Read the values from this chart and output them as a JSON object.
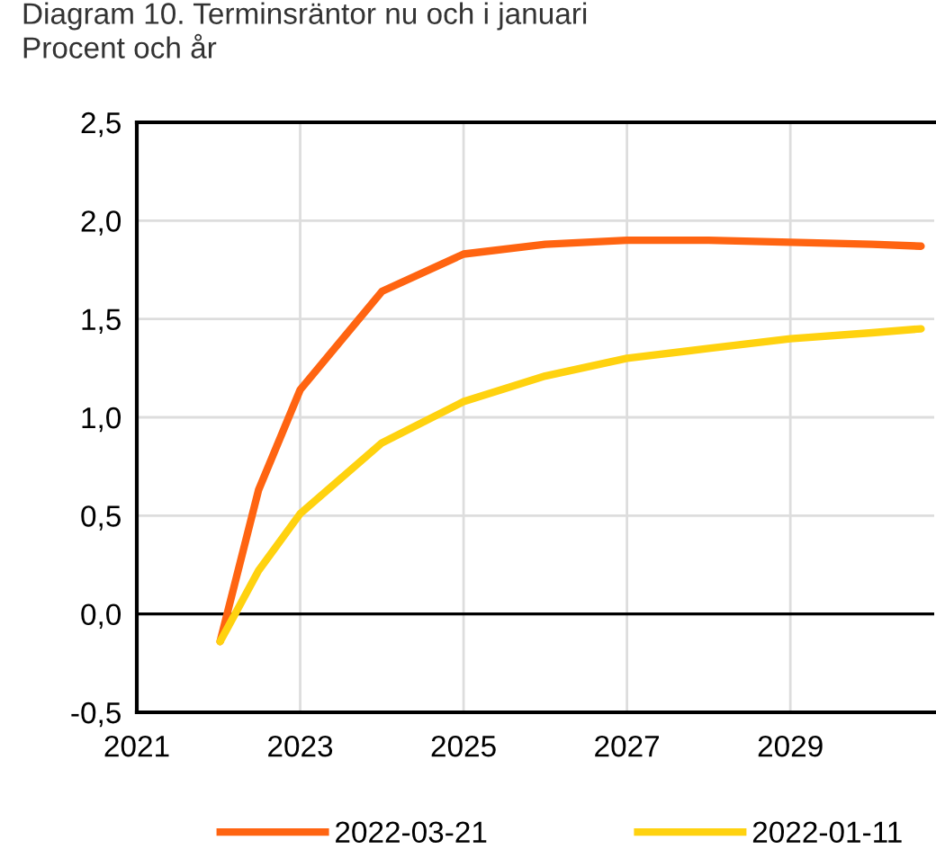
{
  "chart_data": {
    "type": "line",
    "title": "Diagram 10. Terminsräntor nu och i januari",
    "subtitle": "Procent och år",
    "xlim": [
      2021,
      2030.76
    ],
    "xticks": [
      {
        "value": 2021,
        "label": "2021"
      },
      {
        "value": 2023,
        "label": "2023"
      },
      {
        "value": 2025,
        "label": "2025"
      },
      {
        "value": 2027,
        "label": "2027"
      },
      {
        "value": 2029,
        "label": "2029"
      }
    ],
    "ylim": [
      -0.5,
      2.5
    ],
    "yticks": [
      {
        "value": -0.5,
        "label": "-0,5"
      },
      {
        "value": 0,
        "label": "0,0"
      },
      {
        "value": 0.5,
        "label": "0,5"
      },
      {
        "value": 1,
        "label": "1,0"
      },
      {
        "value": 1.5,
        "label": "1,5"
      },
      {
        "value": 2,
        "label": "2,0"
      },
      {
        "value": 2.5,
        "label": "2,5"
      }
    ],
    "grid": true,
    "legend": "bottom",
    "marker": "none",
    "line_style": "solid",
    "ref_lines": [
      {
        "axis": "y",
        "value": 0,
        "color": "#000000"
      }
    ],
    "series": [
      {
        "name": "2022-03-21",
        "color": "#ff6411",
        "x": [
          2022.02,
          2022.49,
          2023,
          2024,
          2025,
          2026,
          2027,
          2028,
          2029,
          2030,
          2030.6
        ],
        "values": [
          -0.14,
          0.63,
          1.14,
          1.64,
          1.83,
          1.88,
          1.9,
          1.9,
          1.89,
          1.88,
          1.87
        ]
      },
      {
        "name": "2022-01-11",
        "color": "#ffd20f",
        "x": [
          2022.02,
          2022.49,
          2023,
          2024,
          2025,
          2026,
          2027,
          2028,
          2029,
          2030,
          2030.6
        ],
        "values": [
          -0.14,
          0.22,
          0.51,
          0.87,
          1.08,
          1.21,
          1.3,
          1.35,
          1.4,
          1.43,
          1.45
        ]
      }
    ]
  }
}
